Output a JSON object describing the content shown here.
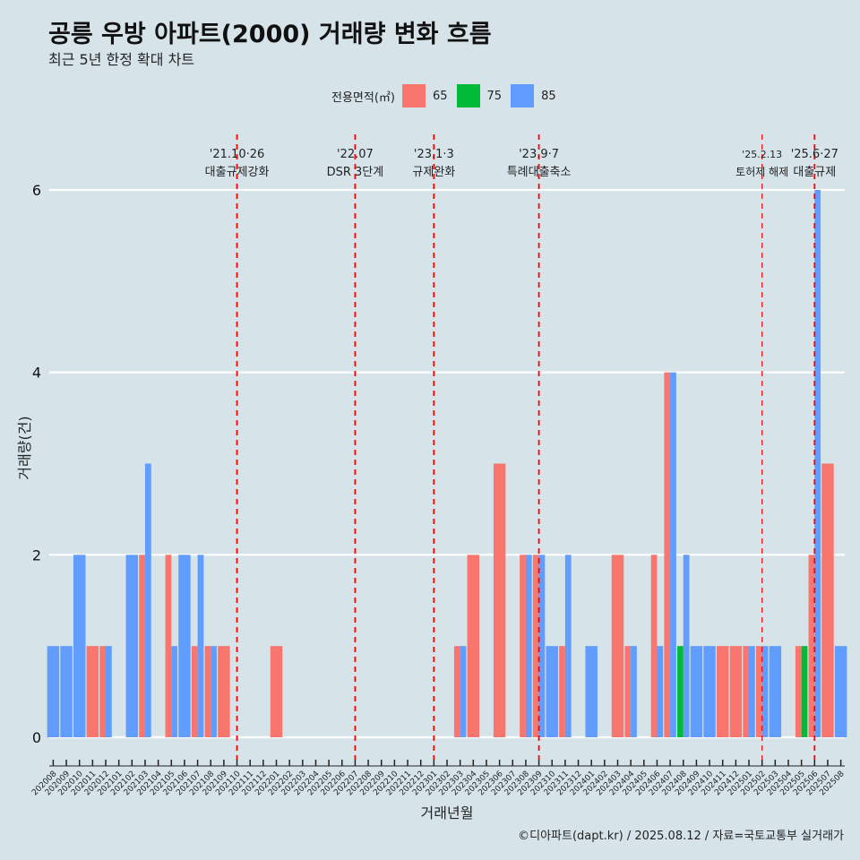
{
  "chart_data": {
    "type": "bar",
    "title": "공릉 우방 아파트(2000) 거래량 변화 흐름",
    "subtitle": "최근 5년 한정 확대 차트",
    "xlabel": "거래년월",
    "ylabel": "거래량(건)",
    "ylim": [
      0,
      6
    ],
    "yticks": [
      0,
      2,
      4,
      6
    ],
    "grid": true,
    "caption": "©디아파트(dapt.kr) / 2025.08.12 / 자료=국토교통부 실거래가",
    "legend": {
      "title": "전용면적(㎡)",
      "position": "top",
      "entries": [
        {
          "name": "65",
          "color": "#f8766d"
        },
        {
          "name": "75",
          "color": "#00ba38"
        },
        {
          "name": "85",
          "color": "#619cff"
        }
      ]
    },
    "categories": [
      "202008",
      "202009",
      "202010",
      "202011",
      "202012",
      "202101",
      "202102",
      "202103",
      "202104",
      "202105",
      "202106",
      "202107",
      "202108",
      "202109",
      "202110",
      "202111",
      "202112",
      "202201",
      "202202",
      "202203",
      "202204",
      "202205",
      "202206",
      "202207",
      "202208",
      "202209",
      "202210",
      "202211",
      "202212",
      "202301",
      "202302",
      "202303",
      "202304",
      "202305",
      "202306",
      "202307",
      "202308",
      "202309",
      "202310",
      "202311",
      "202312",
      "202401",
      "202402",
      "202403",
      "202404",
      "202405",
      "202406",
      "202407",
      "202408",
      "202409",
      "202410",
      "202411",
      "202412",
      "202501",
      "202502",
      "202503",
      "202504",
      "202505",
      "202506",
      "202507",
      "202508"
    ],
    "series": [
      {
        "name": "65",
        "color": "#f8766d",
        "values": [
          0,
          0,
          0,
          1,
          1,
          0,
          0,
          2,
          0,
          2,
          0,
          1,
          1,
          1,
          0,
          0,
          0,
          1,
          0,
          0,
          0,
          0,
          0,
          0,
          0,
          0,
          0,
          0,
          0,
          0,
          0,
          1,
          2,
          0,
          3,
          0,
          2,
          2,
          0,
          1,
          0,
          0,
          0,
          2,
          1,
          0,
          2,
          4,
          0,
          0,
          0,
          1,
          1,
          1,
          1,
          0,
          0,
          1,
          2,
          3,
          0
        ]
      },
      {
        "name": "75",
        "color": "#00ba38",
        "values": [
          0,
          0,
          0,
          0,
          0,
          0,
          0,
          0,
          0,
          0,
          0,
          0,
          0,
          0,
          0,
          0,
          0,
          0,
          0,
          0,
          0,
          0,
          0,
          0,
          0,
          0,
          0,
          0,
          0,
          0,
          0,
          0,
          0,
          0,
          0,
          0,
          0,
          0,
          0,
          0,
          0,
          0,
          0,
          0,
          0,
          0,
          0,
          0,
          1,
          0,
          0,
          0,
          0,
          0,
          0,
          0,
          0,
          1,
          0,
          0,
          0
        ]
      },
      {
        "name": "85",
        "color": "#619cff",
        "values": [
          1,
          1,
          2,
          0,
          1,
          0,
          2,
          3,
          0,
          1,
          2,
          2,
          1,
          0,
          0,
          0,
          0,
          0,
          0,
          0,
          0,
          0,
          0,
          0,
          0,
          0,
          0,
          0,
          0,
          0,
          0,
          1,
          0,
          0,
          0,
          0,
          2,
          2,
          1,
          2,
          0,
          1,
          0,
          0,
          1,
          0,
          1,
          4,
          2,
          1,
          1,
          0,
          0,
          1,
          1,
          1,
          0,
          0,
          6,
          0,
          1
        ]
      }
    ],
    "annotations": [
      {
        "date_label": "'21.10·26",
        "text": "대출규제강화",
        "x": "202110"
      },
      {
        "date_label": "'22.07",
        "text": "DSR 3단계",
        "x": "202207"
      },
      {
        "date_label": "'23.1·3",
        "text": "규제완화",
        "x": "202301"
      },
      {
        "date_label": "'23.9·7",
        "text": "특례대출축소",
        "x": "202309"
      },
      {
        "date_label": "'25.2.13",
        "text": "토허제 해제",
        "x": "202502"
      },
      {
        "date_label": "'25.6·27",
        "text": "대출규제",
        "x": "202506"
      }
    ]
  }
}
